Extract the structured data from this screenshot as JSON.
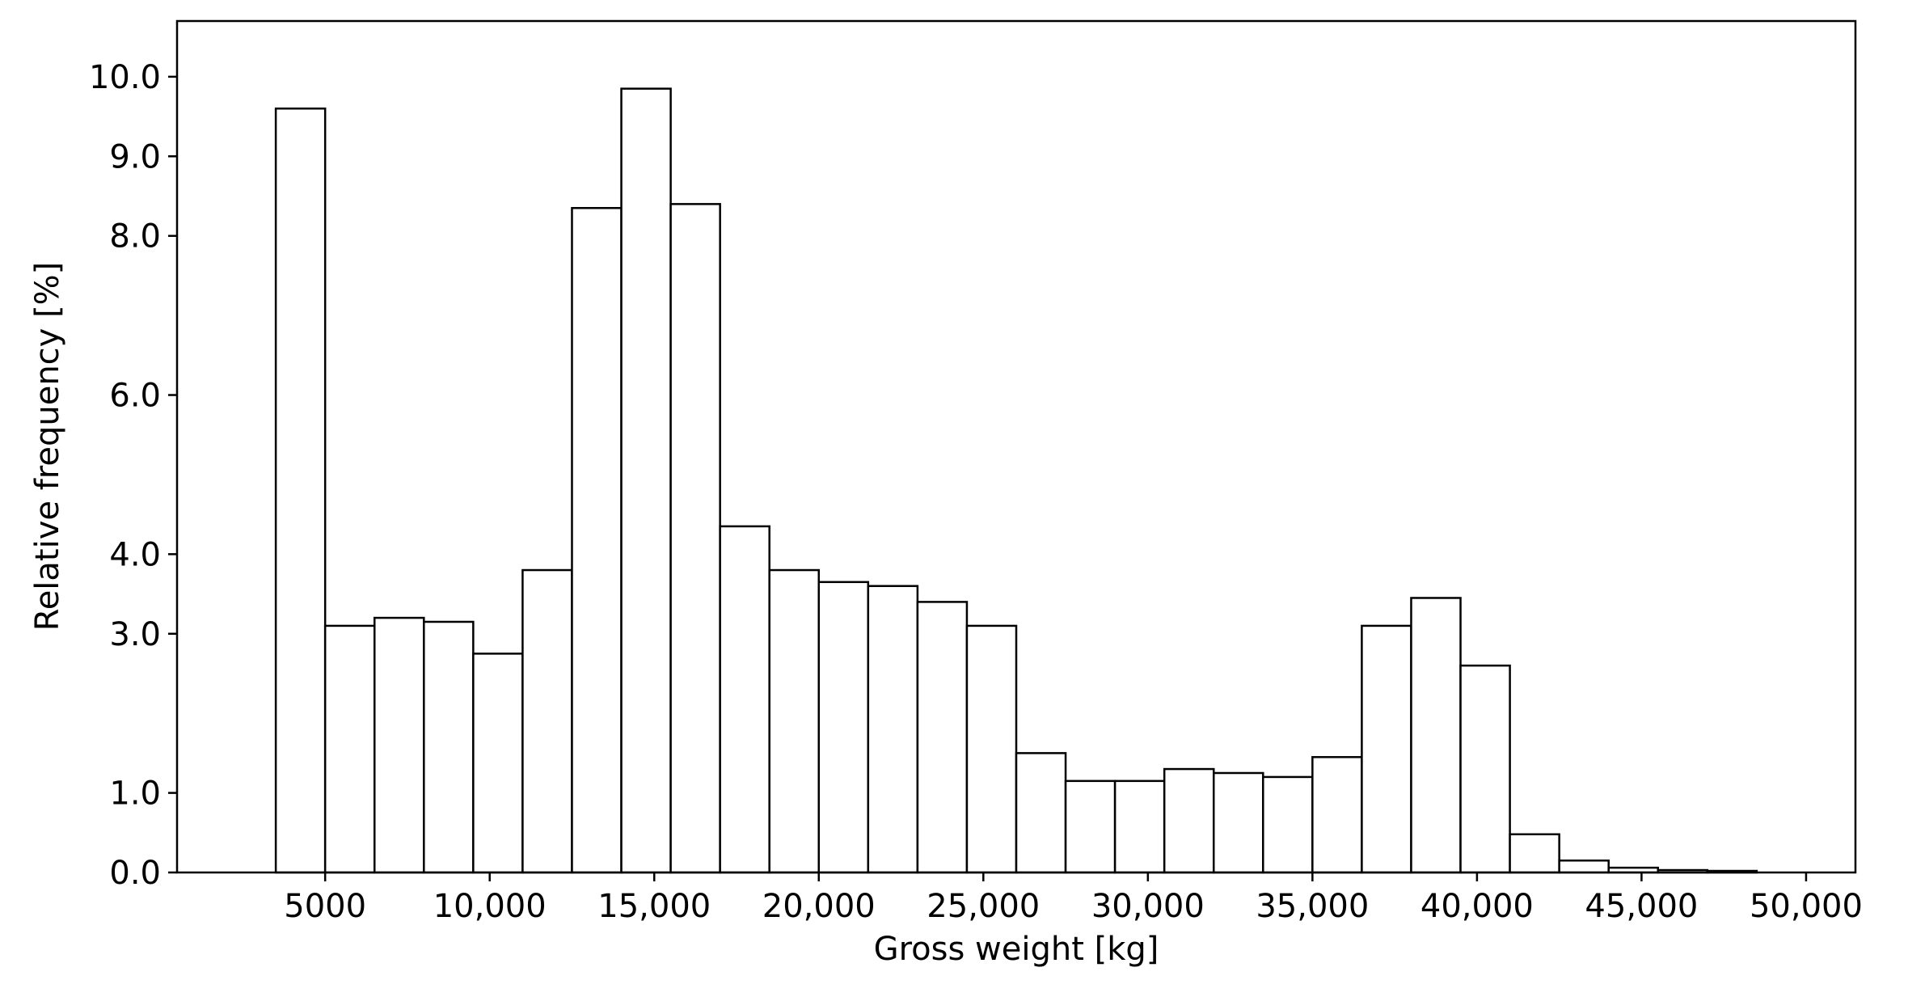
{
  "chart_data": {
    "type": "bar",
    "histogram": true,
    "title": "",
    "xlabel": "Gross weight [kg]",
    "ylabel": "Relative frequency [%]",
    "xlim": [
      500,
      51500
    ],
    "ylim": [
      0,
      10.7
    ],
    "grid": false,
    "legend": "none",
    "bar_color": "#ffffff",
    "edge_color": "#000000",
    "bin_edges": [
      3500,
      5000,
      6500,
      8000,
      9500,
      11000,
      12500,
      14000,
      15500,
      17000,
      18500,
      20000,
      21500,
      23000,
      24500,
      26000,
      27500,
      29000,
      30500,
      32000,
      33500,
      35000,
      36500,
      38000,
      39500,
      41000,
      42500,
      44000,
      45500,
      47000,
      48500
    ],
    "values": [
      9.6,
      3.1,
      3.2,
      3.15,
      2.75,
      3.8,
      8.35,
      9.85,
      8.4,
      4.35,
      3.8,
      3.65,
      3.6,
      3.4,
      3.1,
      1.5,
      1.15,
      1.15,
      1.3,
      1.25,
      1.2,
      1.45,
      3.1,
      3.45,
      2.6,
      0.48,
      0.15,
      0.06,
      0.03,
      0.02
    ],
    "xticks": [
      5000,
      10000,
      15000,
      20000,
      25000,
      30000,
      35000,
      40000,
      45000,
      50000
    ],
    "xtick_labels": [
      "5000",
      "10,000",
      "15,000",
      "20,000",
      "25,000",
      "30,000",
      "35,000",
      "40,000",
      "45,000",
      "50,000"
    ],
    "yticks": [
      0,
      1,
      3,
      4,
      6,
      8,
      9,
      10
    ],
    "ytick_labels": [
      "0.0",
      "1.0",
      "3.0",
      "4.0",
      "6.0",
      "8.0",
      "9.0",
      "10.0"
    ]
  }
}
